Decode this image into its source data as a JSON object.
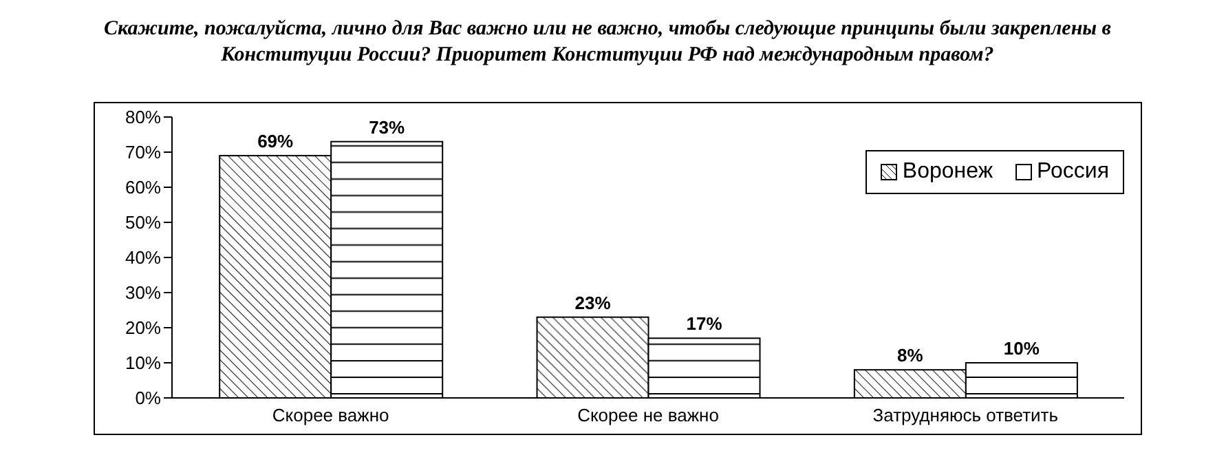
{
  "chart_data": {
    "type": "bar",
    "title": "Скажите, пожалуйста, лично для Вас важно или не важно, чтобы следующие принципы были закреплены в Конституции России? Приоритет Конституции РФ над международным правом?",
    "categories": [
      "Скорее важно",
      "Скорее не важно",
      "Затрудняюсь ответить"
    ],
    "series": [
      {
        "name": "Воронеж",
        "color": "#ffffff",
        "values": [
          69,
          23,
          8
        ],
        "value_labels": [
          "69%",
          "23%",
          "8%"
        ]
      },
      {
        "name": "Россия",
        "color": "#ffffff",
        "values": [
          73,
          17,
          10
        ],
        "value_labels": [
          "73%",
          "17%",
          "10%"
        ]
      }
    ],
    "ylim": [
      0,
      80
    ],
    "yticks": [
      {
        "value": 0,
        "label": "0%"
      },
      {
        "value": 10,
        "label": "10%"
      },
      {
        "value": 20,
        "label": "20%"
      },
      {
        "value": 30,
        "label": "30%"
      },
      {
        "value": 40,
        "label": "40%"
      },
      {
        "value": 50,
        "label": "50%"
      },
      {
        "value": 60,
        "label": "60%"
      },
      {
        "value": 70,
        "label": "70%"
      },
      {
        "value": 80,
        "label": "80%"
      }
    ],
    "legend": "top right",
    "grid": false
  }
}
